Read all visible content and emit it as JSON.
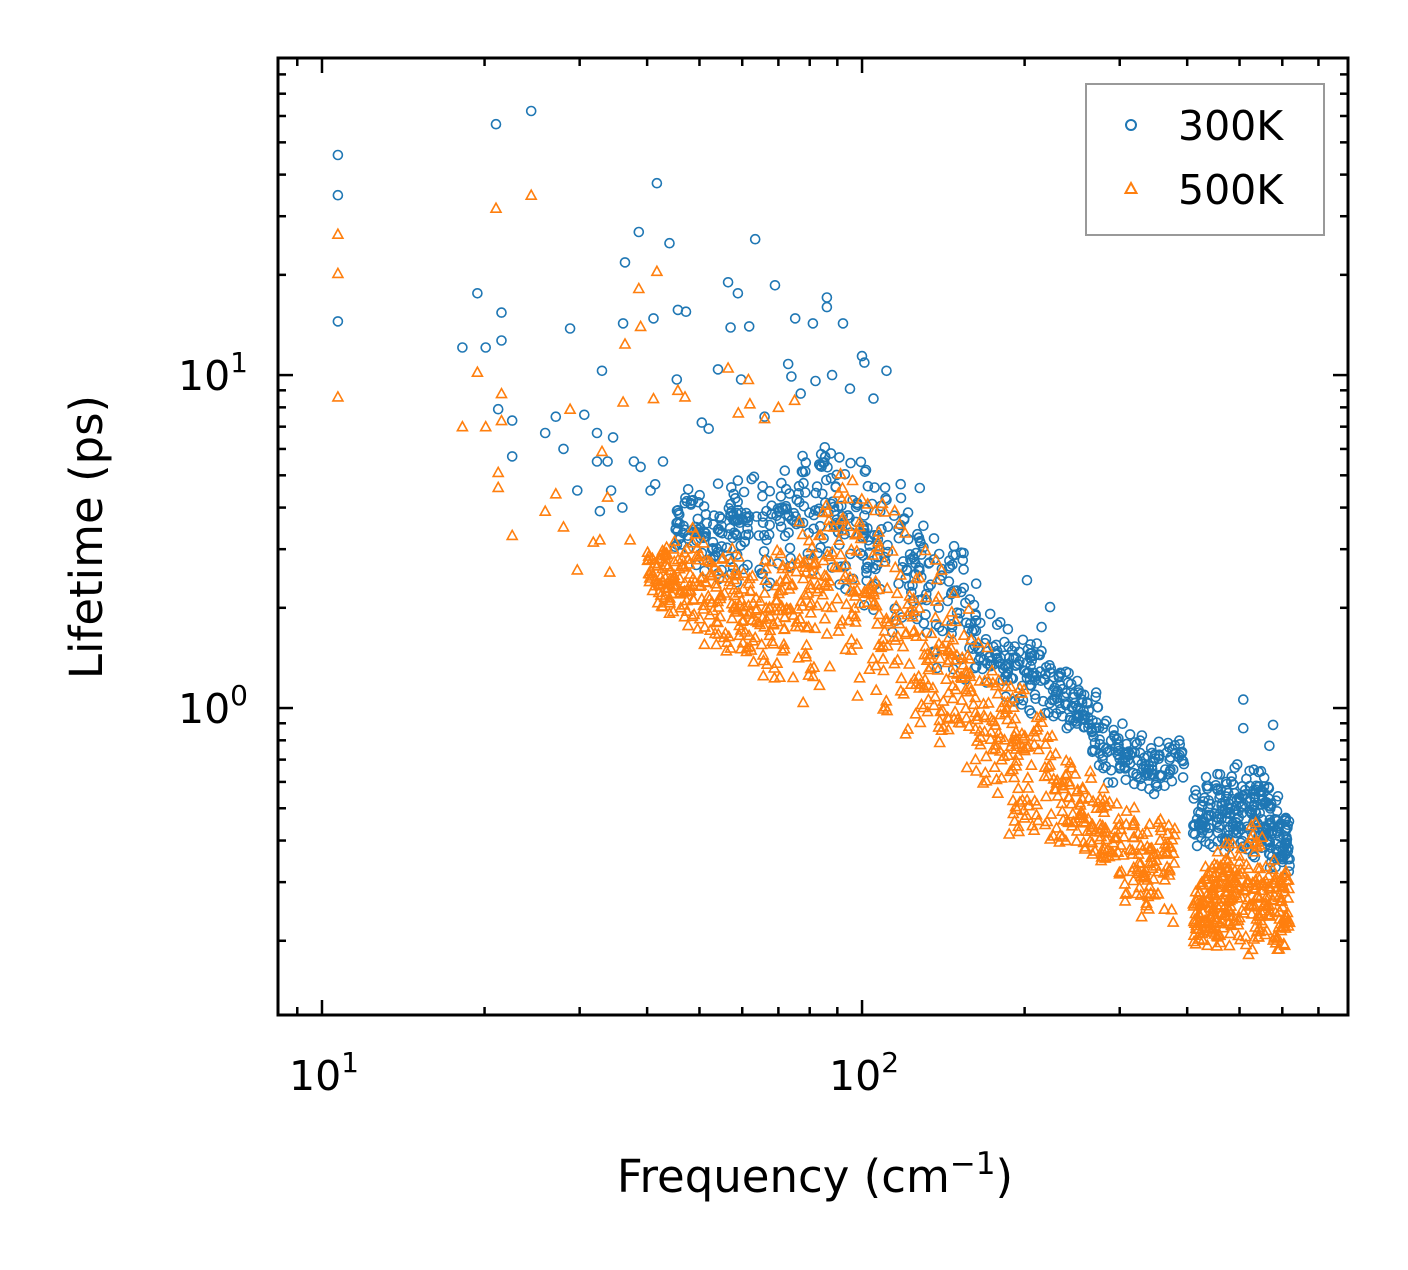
{
  "chart_data": {
    "type": "scatter",
    "title": "",
    "xlabel": {
      "main": "Frequency (cm",
      "sup": "−1",
      "tail": ")"
    },
    "ylabel": "Lifetime (ps)",
    "xscale": "log",
    "yscale": "log",
    "xlim": [
      8.29,
      794
    ],
    "ylim": [
      0.1197,
      89.6
    ],
    "grid": false,
    "legend_position": "top-right",
    "x_ticks": [
      {
        "value": 10,
        "base": "10",
        "exp": "1"
      },
      {
        "value": 100,
        "base": "10",
        "exp": "2"
      }
    ],
    "y_ticks": [
      {
        "value": 1,
        "base": "10",
        "exp": "0"
      },
      {
        "value": 10,
        "base": "10",
        "exp": "1"
      }
    ],
    "series": [
      {
        "name": "300K",
        "color": "#1f77b4",
        "marker": "circle",
        "points": [
          [
            10.7,
            45.8
          ],
          [
            10.7,
            34.7
          ],
          [
            10.7,
            14.5
          ],
          [
            21.0,
            56.7
          ],
          [
            24.4,
            62.1
          ],
          [
            41.7,
            37.7
          ],
          [
            38.6,
            26.9
          ],
          [
            44.0,
            24.9
          ],
          [
            63.4,
            25.6
          ],
          [
            36.4,
            21.8
          ],
          [
            19.4,
            17.6
          ],
          [
            56.5,
            19.0
          ],
          [
            58.9,
            17.6
          ],
          [
            69.0,
            18.6
          ],
          [
            21.5,
            15.4
          ],
          [
            18.2,
            12.1
          ],
          [
            20.1,
            12.1
          ],
          [
            21.5,
            12.7
          ],
          [
            28.8,
            13.8
          ],
          [
            36.1,
            14.3
          ],
          [
            41.1,
            14.8
          ],
          [
            45.6,
            15.7
          ],
          [
            47.2,
            15.5
          ],
          [
            57.1,
            13.9
          ],
          [
            61.8,
            14.0
          ],
          [
            75.2,
            14.8
          ],
          [
            81.1,
            14.3
          ],
          [
            86.1,
            17.1
          ],
          [
            86.1,
            16.0
          ],
          [
            92.2,
            14.3
          ],
          [
            100,
            11.4
          ],
          [
            101,
            10.9
          ],
          [
            111,
            10.3
          ],
          [
            33.0,
            10.3
          ],
          [
            54.1,
            10.4
          ],
          [
            45.4,
            9.7
          ],
          [
            59.7,
            9.7
          ],
          [
            21.2,
            7.9
          ],
          [
            22.5,
            7.3
          ],
          [
            25.9,
            6.7
          ],
          [
            27.1,
            7.5
          ],
          [
            28.0,
            6.0
          ],
          [
            30.6,
            7.6
          ],
          [
            32.3,
            6.7
          ],
          [
            34.6,
            6.5
          ],
          [
            22.5,
            5.7
          ],
          [
            32.3,
            5.5
          ],
          [
            33.8,
            5.5
          ],
          [
            37.8,
            5.5
          ],
          [
            38.9,
            5.3
          ],
          [
            42.8,
            5.5
          ],
          [
            29.7,
            4.5
          ],
          [
            34.3,
            4.5
          ],
          [
            41.4,
            4.7
          ],
          [
            40.6,
            4.5
          ],
          [
            36.0,
            4.0
          ],
          [
            32.7,
            3.9
          ],
          [
            50.5,
            7.2
          ],
          [
            52.0,
            6.9
          ],
          [
            66.0,
            7.5
          ],
          [
            73.0,
            10.8
          ],
          [
            74.0,
            9.9
          ],
          [
            77.0,
            8.8
          ],
          [
            82.0,
            9.6
          ],
          [
            88.0,
            10.0
          ],
          [
            95.0,
            9.1
          ],
          [
            105,
            8.5
          ],
          [
            202,
            2.42
          ],
          [
            223,
            2.01
          ],
          [
            215,
            1.75
          ],
          [
            508,
            0.87
          ],
          [
            508,
            1.06
          ],
          [
            577,
            0.89
          ],
          [
            568,
            0.77
          ]
        ],
        "dense_segments": [
          {
            "count": 750,
            "envelope": [
              [
                45,
                3.0,
                5.0
              ],
              [
                50,
                2.4,
                4.8
              ],
              [
                64,
                2.2,
                5.5
              ],
              [
                80,
                2.5,
                6.5
              ],
              [
                91,
                2.2,
                7.0
              ],
              [
                100,
                1.8,
                6.4
              ],
              [
                118,
                1.5,
                5.5
              ],
              [
                145,
                1.2,
                3.7
              ],
              [
                180,
                0.92,
                2.1
              ],
              [
                223,
                0.92,
                1.5
              ],
              [
                260,
                0.75,
                1.2
              ],
              [
                275,
                0.6,
                1.13
              ],
              [
                340,
                0.53,
                0.8
              ],
              [
                380,
                0.55,
                0.85
              ],
              [
                395,
                0.55,
                0.85
              ]
            ]
          },
          {
            "count": 280,
            "envelope": [
              [
                410,
                0.35,
                0.6
              ],
              [
                420,
                0.33,
                0.61
              ],
              [
                520,
                0.35,
                0.75
              ],
              [
                620,
                0.3,
                0.5
              ]
            ]
          }
        ]
      },
      {
        "name": "500K",
        "color": "#ff7f0e",
        "marker": "triangle",
        "points": [
          [
            10.7,
            26.5
          ],
          [
            10.7,
            20.2
          ],
          [
            10.7,
            8.6
          ],
          [
            21.0,
            31.7
          ],
          [
            24.4,
            34.7
          ],
          [
            41.7,
            20.5
          ],
          [
            19.4,
            10.2
          ],
          [
            21.5,
            8.8
          ],
          [
            18.2,
            7.0
          ],
          [
            20.1,
            7.0
          ],
          [
            21.5,
            7.3
          ],
          [
            21.2,
            5.1
          ],
          [
            21.2,
            4.6
          ],
          [
            22.5,
            3.3
          ],
          [
            25.9,
            3.9
          ],
          [
            27.1,
            4.4
          ],
          [
            28.0,
            3.5
          ],
          [
            28.8,
            7.9
          ],
          [
            29.7,
            2.6
          ],
          [
            31.8,
            3.15
          ],
          [
            32.7,
            3.2
          ],
          [
            33.8,
            4.3
          ],
          [
            33.0,
            5.9
          ],
          [
            36.1,
            8.3
          ],
          [
            36.4,
            12.4
          ],
          [
            38.9,
            14.0
          ],
          [
            41.1,
            8.5
          ],
          [
            38.6,
            18.2
          ],
          [
            34.1,
            2.56
          ],
          [
            37.2,
            3.2
          ],
          [
            45.6,
            9.0
          ],
          [
            47.0,
            8.6
          ],
          [
            56.5,
            10.5
          ],
          [
            61.6,
            9.7
          ],
          [
            59.0,
            7.7
          ],
          [
            77.8,
            1.04
          ],
          [
            83.4,
            1.17
          ],
          [
            62,
            8.2
          ],
          [
            66,
            7.4
          ],
          [
            70,
            8.0
          ],
          [
            75,
            8.4
          ]
        ],
        "dense_segments": [
          {
            "count": 950,
            "envelope": [
              [
                40,
                2.1,
                3.2
              ],
              [
                50,
                1.5,
                3.7
              ],
              [
                64,
                1.13,
                2.8
              ],
              [
                80,
                1.1,
                4.0
              ],
              [
                91,
                1.13,
                6.4
              ],
              [
                118,
                0.7,
                4.2
              ],
              [
                145,
                0.7,
                2.6
              ],
              [
                180,
                0.4,
                1.5
              ],
              [
                223,
                0.35,
                1.06
              ],
              [
                275,
                0.33,
                0.61
              ],
              [
                340,
                0.2,
                0.53
              ],
              [
                380,
                0.22,
                0.48
              ]
            ]
          },
          {
            "count": 320,
            "envelope": [
              [
                410,
                0.18,
                0.33
              ],
              [
                520,
                0.18,
                0.5
              ],
              [
                620,
                0.18,
                0.33
              ]
            ]
          }
        ]
      }
    ]
  }
}
